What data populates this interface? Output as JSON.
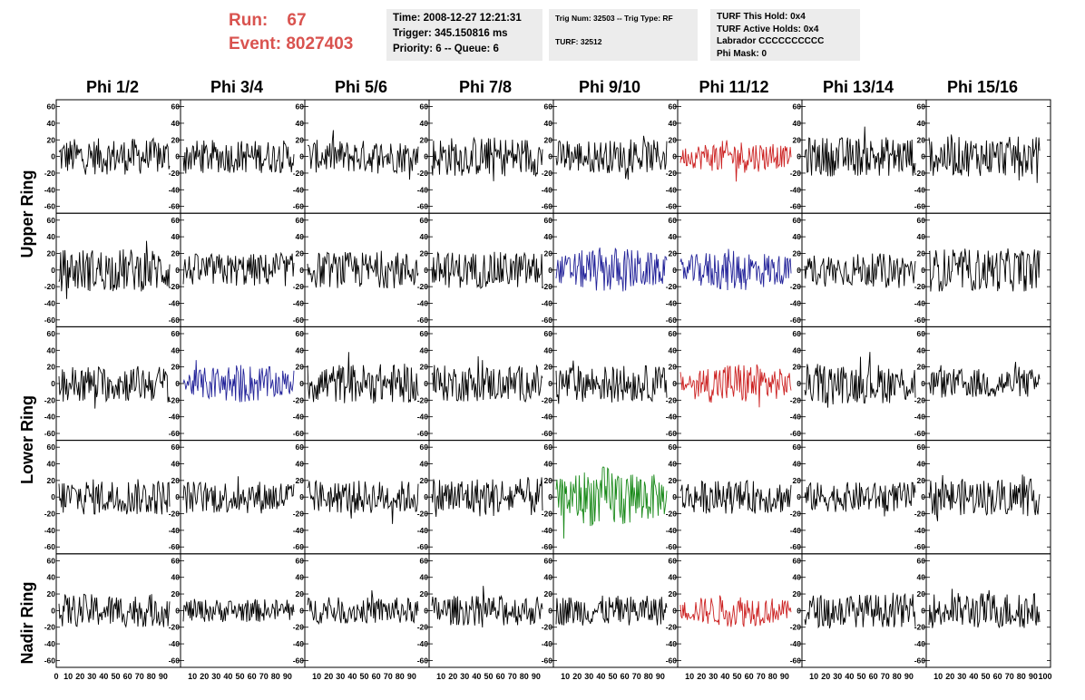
{
  "header": {
    "run_label": "Run:",
    "run_value": "67",
    "event_label": "Event:",
    "event_value": "8027403",
    "time_text": "Time: 2008-12-27 12:21:31",
    "trigger_text": "Trigger: 345.150816 ms",
    "priority_text": "Priority: 6 -- Queue: 6",
    "trig_num_text": "Trig Num: 32503 -- Trig Type: RF",
    "turf_text": "TURF: 32512",
    "turf_this_hold": "TURF This Hold: 0x4",
    "turf_active_holds": "TURF Active Holds: 0x4",
    "labrador": "Labrador CCCCCCCCCC",
    "phi_mask": "Phi Mask: 0"
  },
  "columns": [
    "Phi 1/2",
    "Phi 3/4",
    "Phi 5/6",
    "Phi 7/8",
    "Phi 9/10",
    "Phi 11/12",
    "Phi 13/14",
    "Phi 15/16"
  ],
  "rings": {
    "upper": "Upper Ring",
    "lower": "Lower Ring",
    "nadir": "Nadir Ring"
  },
  "colors": {
    "black": "#000000",
    "red": "#cc2222",
    "blue": "#222299",
    "green": "#1a8a1a",
    "run_text": "#d9534f",
    "info_bg": "#ececec"
  },
  "chart_data": {
    "type": "line",
    "ylim": [
      -65,
      65
    ],
    "xlim": [
      0,
      100
    ],
    "y_ticks": [
      "60",
      "40",
      "20",
      "0",
      "-20",
      "-40",
      "-60"
    ],
    "x_ticks": [
      "0",
      "10",
      "20",
      "30",
      "40",
      "50",
      "60",
      "70",
      "80",
      "90",
      "100"
    ],
    "rows": 5,
    "cols": 8,
    "panel_colors": [
      [
        "black",
        "black",
        "black",
        "black",
        "black",
        "red",
        "black",
        "black"
      ],
      [
        "black",
        "black",
        "black",
        "black",
        "blue",
        "blue",
        "black",
        "black"
      ],
      [
        "black",
        "blue",
        "black",
        "black",
        "black",
        "red",
        "black",
        "black"
      ],
      [
        "black",
        "black",
        "black",
        "black",
        "green",
        "black",
        "black",
        "black"
      ],
      [
        "black",
        "black",
        "black",
        "black",
        "black",
        "red",
        "black",
        "black"
      ]
    ],
    "panel_amplitudes": [
      [
        22,
        20,
        20,
        24,
        20,
        20,
        24,
        24
      ],
      [
        26,
        20,
        22,
        22,
        28,
        26,
        20,
        26
      ],
      [
        22,
        24,
        24,
        22,
        22,
        26,
        24,
        18
      ],
      [
        22,
        20,
        20,
        24,
        38,
        20,
        18,
        22
      ],
      [
        20,
        14,
        16,
        18,
        18,
        20,
        20,
        22
      ]
    ]
  }
}
